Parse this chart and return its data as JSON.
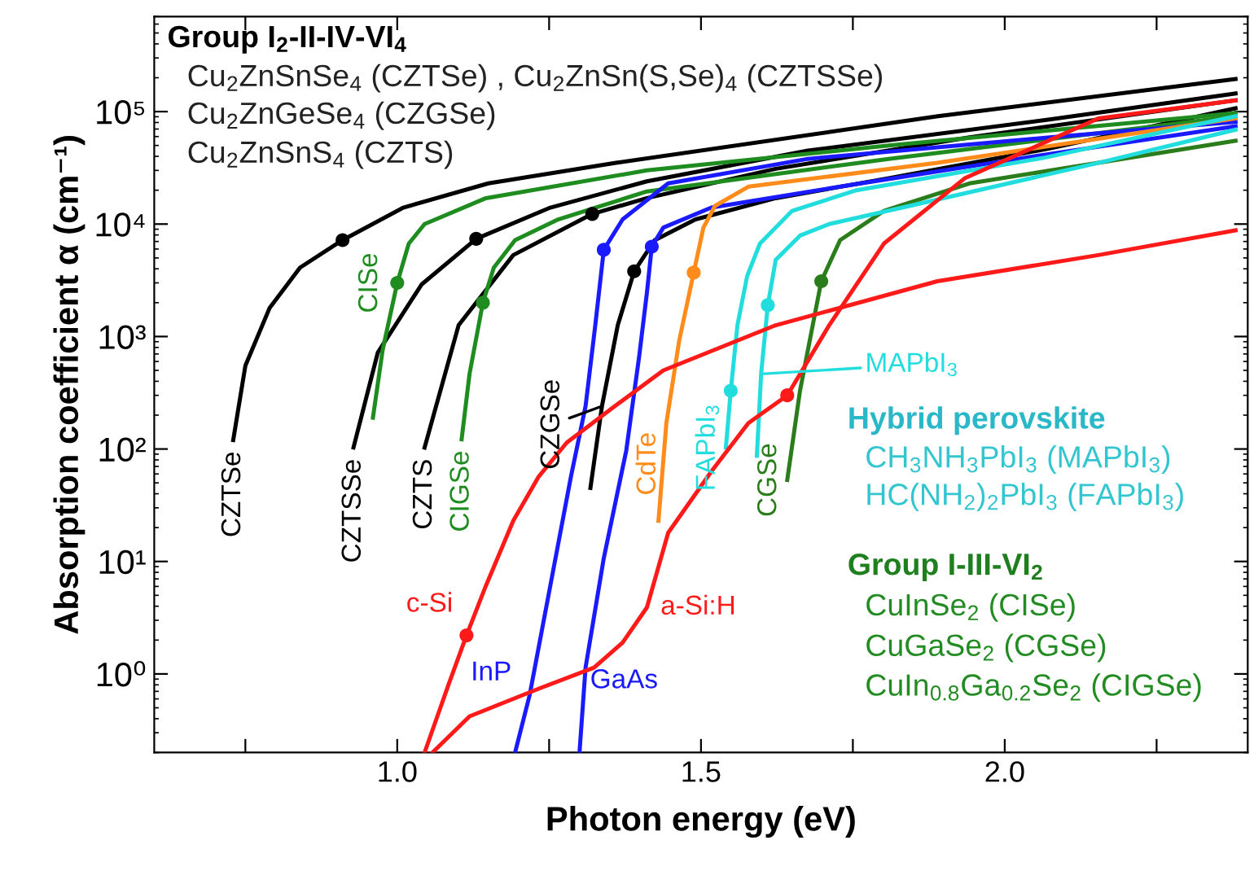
{
  "chart_data": {
    "type": "line",
    "xlabel": "Photon energy (eV)",
    "ylabel": "Absorption coefficient α (cm⁻¹)",
    "log": "y",
    "xlim": [
      0.6,
      2.4
    ],
    "ylim": [
      0.2,
      700000
    ],
    "xticks": [
      {
        "value": 0.75,
        "label": null
      },
      {
        "value": 1.0,
        "label": "1.0"
      },
      {
        "value": 1.25,
        "label": null
      },
      {
        "value": 1.5,
        "label": "1.5"
      },
      {
        "value": 1.75,
        "label": null
      },
      {
        "value": 2.0,
        "label": "2.0"
      },
      {
        "value": 2.25,
        "label": null
      }
    ],
    "yticks": [
      {
        "value": 1,
        "label": "10⁰"
      },
      {
        "value": 10,
        "label": "10¹"
      },
      {
        "value": 100,
        "label": "10²"
      },
      {
        "value": 1000,
        "label": "10³"
      },
      {
        "value": 10000,
        "label": "10⁴"
      },
      {
        "value": 100000,
        "label": "10⁵"
      }
    ],
    "series": [
      {
        "name": "CZTSe",
        "color": "#000000",
        "x": [
          0.73,
          0.75,
          0.79,
          0.84,
          0.91,
          1.01,
          1.15,
          1.36,
          1.89,
          2.38
        ],
        "values": [
          120,
          550,
          1800,
          4100,
          7200,
          14000,
          23000,
          35000,
          91000,
          195000
        ]
      },
      {
        "name": "CZTSSe",
        "color": "#000000",
        "x": [
          0.928,
          0.968,
          1.04,
          1.13,
          1.252,
          1.411,
          1.676,
          2.074,
          2.38
        ],
        "values": [
          103,
          720,
          2900,
          7400,
          14000,
          24000,
          45000,
          85000,
          145000
        ]
      },
      {
        "name": "CZTS",
        "color": "#000000",
        "x": [
          1.045,
          1.101,
          1.191,
          1.321,
          1.411,
          1.623,
          1.942,
          2.38
        ],
        "values": [
          103,
          1260,
          5300,
          12300,
          17000,
          31000,
          59000,
          126000
        ]
      },
      {
        "name": "CZGSe",
        "color": "#000000",
        "x": [
          1.318,
          1.337,
          1.363,
          1.39,
          1.424,
          1.491,
          1.623,
          1.809,
          2.074,
          2.38
        ],
        "values": [
          45,
          240,
          1260,
          3800,
          7200,
          11000,
          17000,
          25500,
          47000,
          107000
        ]
      },
      {
        "name": "CISe",
        "color": "#1e8c1e",
        "x": [
          0.96,
          0.976,
          1.0,
          1.019,
          1.045,
          1.146,
          1.411,
          1.809,
          2.38
        ],
        "values": [
          190,
          760,
          3000,
          6700,
          10000,
          17000,
          30000,
          50000,
          97000
        ]
      },
      {
        "name": "CIGSe",
        "color": "#1e8c1e",
        "x": [
          1.106,
          1.119,
          1.141,
          1.159,
          1.194,
          1.265,
          1.411,
          1.809,
          2.38
        ],
        "values": [
          122,
          465,
          2000,
          4100,
          7200,
          11000,
          19500,
          38000,
          91000
        ]
      },
      {
        "name": "CGSe",
        "color": "#2a7d1a",
        "x": [
          1.642,
          1.663,
          1.698,
          1.729,
          1.801,
          1.942,
          2.154,
          2.38
        ],
        "values": [
          53,
          330,
          3100,
          7200,
          13100,
          23000,
          35000,
          55000
        ]
      },
      {
        "name": "InP",
        "color": "#1a1aff",
        "x": [
          1.194,
          1.218,
          1.252,
          1.286,
          1.31,
          1.326,
          1.34,
          1.371,
          1.446,
          1.676,
          2.074,
          2.38
        ],
        "values": [
          0.2,
          0.65,
          6.1,
          57,
          240,
          1260,
          5900,
          11000,
          23000,
          38000,
          59000,
          81000
        ]
      },
      {
        "name": "GaAs",
        "color": "#1a1aff",
        "x": [
          1.3,
          1.31,
          1.34,
          1.377,
          1.398,
          1.411,
          1.419,
          1.438,
          1.517,
          1.729,
          2.074,
          2.38
        ],
        "values": [
          0.2,
          1.14,
          10.7,
          97,
          650,
          2450,
          6300,
          9300,
          14000,
          21500,
          42000,
          74000
        ]
      },
      {
        "name": "CdTe",
        "color": "#ff8c1a",
        "x": [
          1.43,
          1.443,
          1.464,
          1.488,
          1.504,
          1.523,
          1.578,
          1.889,
          2.38
        ],
        "values": [
          23,
          170,
          910,
          3700,
          9300,
          14500,
          21500,
          35000,
          87000
        ]
      },
      {
        "name": "FAPbI$_{3}$",
        "color": "#22dddd",
        "x": [
          1.541,
          1.549,
          1.56,
          1.576,
          1.597,
          1.65,
          1.756,
          2.066,
          2.38
        ],
        "values": [
          103,
          330,
          1260,
          3450,
          6700,
          13100,
          20000,
          39000,
          91000
        ]
      },
      {
        "name": "MAPbI$_{3}$",
        "color": "#22dddd",
        "x": [
          1.592,
          1.599,
          1.61,
          1.623,
          1.663,
          1.711,
          1.843,
          2.154,
          2.38
        ],
        "values": [
          87,
          465,
          1900,
          4800,
          7900,
          10000,
          14500,
          35000,
          69000
        ]
      },
      {
        "name": "c-Si",
        "color": "#ff1a1a",
        "x": [
          1.045,
          1.066,
          1.085,
          1.114,
          1.146,
          1.191,
          1.233,
          1.279,
          1.358,
          1.438,
          1.623,
          1.889,
          2.154,
          2.38
        ],
        "values": [
          0.2,
          0.42,
          0.82,
          2.2,
          6.1,
          23,
          57,
          114,
          240,
          500,
          1260,
          3100,
          5300,
          8800
        ]
      },
      {
        "name": "a-Si:H",
        "color": "#ff1a1a",
        "x": [
          1.058,
          1.119,
          1.233,
          1.324,
          1.371,
          1.411,
          1.446,
          1.517,
          1.578,
          1.642,
          1.711,
          1.801,
          1.934,
          2.154,
          2.38
        ],
        "values": [
          0.2,
          0.42,
          0.74,
          1.14,
          1.9,
          3.9,
          18,
          63,
          170,
          300,
          1260,
          6700,
          25500,
          87000,
          126000
        ]
      },
      {
        "type": "scatter",
        "marker": "circle",
        "x": [
          0.91,
          1.13,
          1.321,
          1.39,
          1.0,
          1.141,
          1.698,
          1.34,
          1.419,
          1.488,
          1.549,
          1.61,
          1.114,
          1.642
        ],
        "values": [
          7200,
          7400,
          12300,
          3800,
          3000,
          2000,
          3100,
          5900,
          6300,
          3700,
          330,
          1900,
          2.2,
          300
        ],
        "colors": [
          "#000000",
          "#000000",
          "#000000",
          "#000000",
          "#1e8c1e",
          "#1e8c1e",
          "#2a7d1a",
          "#1a1aff",
          "#1a1aff",
          "#ff8c1a",
          "#22dddd",
          "#22dddd",
          "#ff1a1a",
          "#ff1a1a"
        ]
      }
    ],
    "annotations": [
      "Group I$_{2}$-II-IV-VI$_{4}$",
      "Cu$_{2}$ZnSnSe$_{4}$ (CZTSe) , Cu$_{2}$ZnSn(S,Se)$_{4}$ (CZTSSe)",
      "Cu$_{2}$ZnGeSe$_{4}$ (CZGSe)",
      "Cu$_{2}$ZnSnS$_{4}$ (CZTS)",
      "Hybrid perovskite",
      "CH$_{3}$NH$_{3}$PbI$_{3}$ (MAPbI$_{3}$)",
      "HC(NH$_{2}$)$_{2}$PbI$_{3}$ (FAPbI$_{3}$)",
      "Group I-III-VI$_{2}$",
      "CuInSe$_{2}$ (CISe)",
      "CuGaSe$_{2}$ (CGSe)",
      "CuIn$_{0.8}$Ga$_{0.2}$Se$_{2}$ (CIGSe)"
    ]
  }
}
